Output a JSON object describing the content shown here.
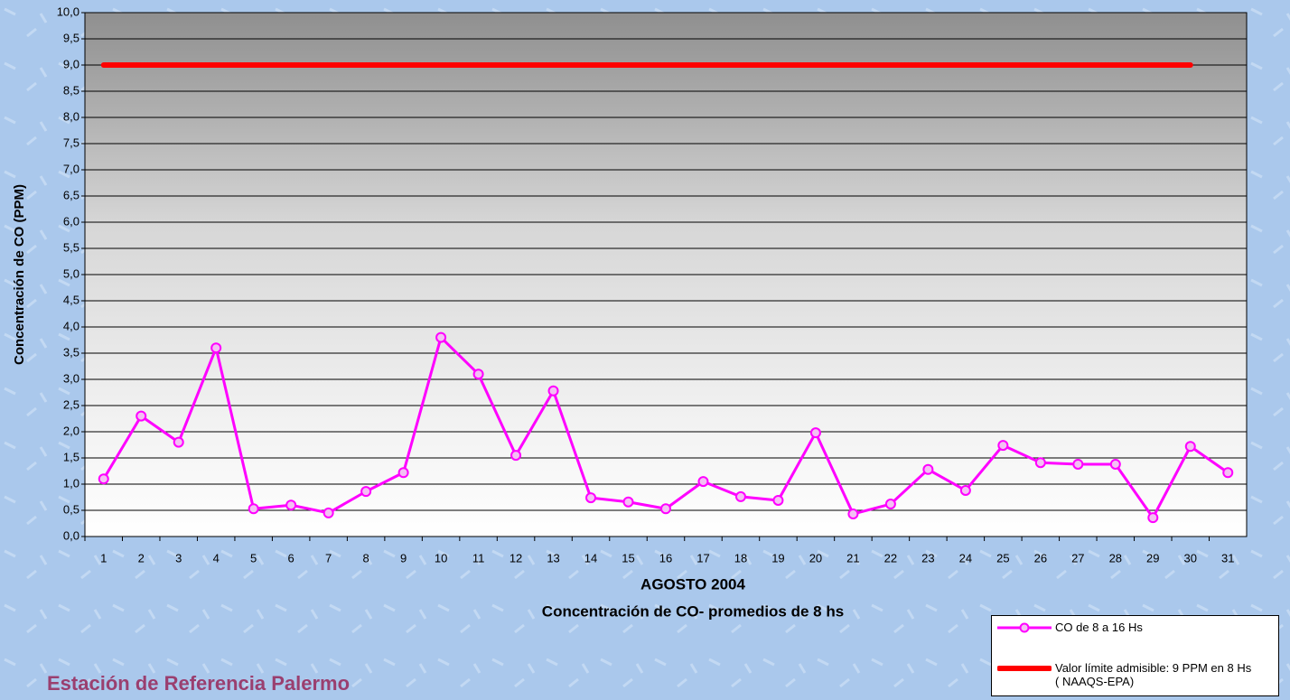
{
  "chart_data": {
    "type": "line",
    "ylabel": "Concentración de CO (PPM)",
    "xlabel": "AGOSTO 2004",
    "subtitle": "Concentración de CO- promedios de 8 hs",
    "annotation": "Estación de Referencia Palermo",
    "categories": [
      "1",
      "2",
      "3",
      "4",
      "5",
      "6",
      "7",
      "8",
      "9",
      "10",
      "11",
      "12",
      "13",
      "14",
      "15",
      "16",
      "17",
      "18",
      "19",
      "20",
      "21",
      "22",
      "23",
      "24",
      "25",
      "26",
      "27",
      "28",
      "29",
      "30",
      "31"
    ],
    "series": [
      {
        "name": "CO de 8 a 16 Hs",
        "color": "#ff00ff",
        "values": [
          1.1,
          2.3,
          1.8,
          3.6,
          0.53,
          0.6,
          0.45,
          0.86,
          1.22,
          3.8,
          3.1,
          1.55,
          2.78,
          0.74,
          0.66,
          0.53,
          1.05,
          0.76,
          0.69,
          1.98,
          0.43,
          0.62,
          1.28,
          0.88,
          1.74,
          1.41,
          1.38,
          1.38,
          0.36,
          1.72,
          1.22
        ]
      },
      {
        "name": "Valor límite admisible: 9 PPM en 8 Hs ( NAAQS-EPA)",
        "color": "#ff0000",
        "values": [
          9,
          9,
          9,
          9,
          9,
          9,
          9,
          9,
          9,
          9,
          9,
          9,
          9,
          9,
          9,
          9,
          9,
          9,
          9,
          9,
          9,
          9,
          9,
          9,
          9,
          9,
          9,
          9,
          9,
          9,
          null
        ]
      }
    ],
    "ylim": [
      0,
      10
    ],
    "yticks": [
      {
        "value": 0,
        "label": "0,0"
      },
      {
        "value": 0.5,
        "label": "0,5"
      },
      {
        "value": 1,
        "label": "1,0"
      },
      {
        "value": 1.5,
        "label": "1,5"
      },
      {
        "value": 2,
        "label": "2,0"
      },
      {
        "value": 2.5,
        "label": "2,5"
      },
      {
        "value": 3,
        "label": "3,0"
      },
      {
        "value": 3.5,
        "label": "3,5"
      },
      {
        "value": 4,
        "label": "4,0"
      },
      {
        "value": 4.5,
        "label": "4,5"
      },
      {
        "value": 5,
        "label": "5,0"
      },
      {
        "value": 5.5,
        "label": "5,5"
      },
      {
        "value": 6,
        "label": "6,0"
      },
      {
        "value": 6.5,
        "label": "6,5"
      },
      {
        "value": 7,
        "label": "7,0"
      },
      {
        "value": 7.5,
        "label": "7,5"
      },
      {
        "value": 8,
        "label": "8,0"
      },
      {
        "value": 8.5,
        "label": "8,5"
      },
      {
        "value": 9,
        "label": "9,0"
      },
      {
        "value": 9.5,
        "label": "9,5"
      },
      {
        "value": 10,
        "label": "10,0"
      }
    ],
    "grid": true
  }
}
